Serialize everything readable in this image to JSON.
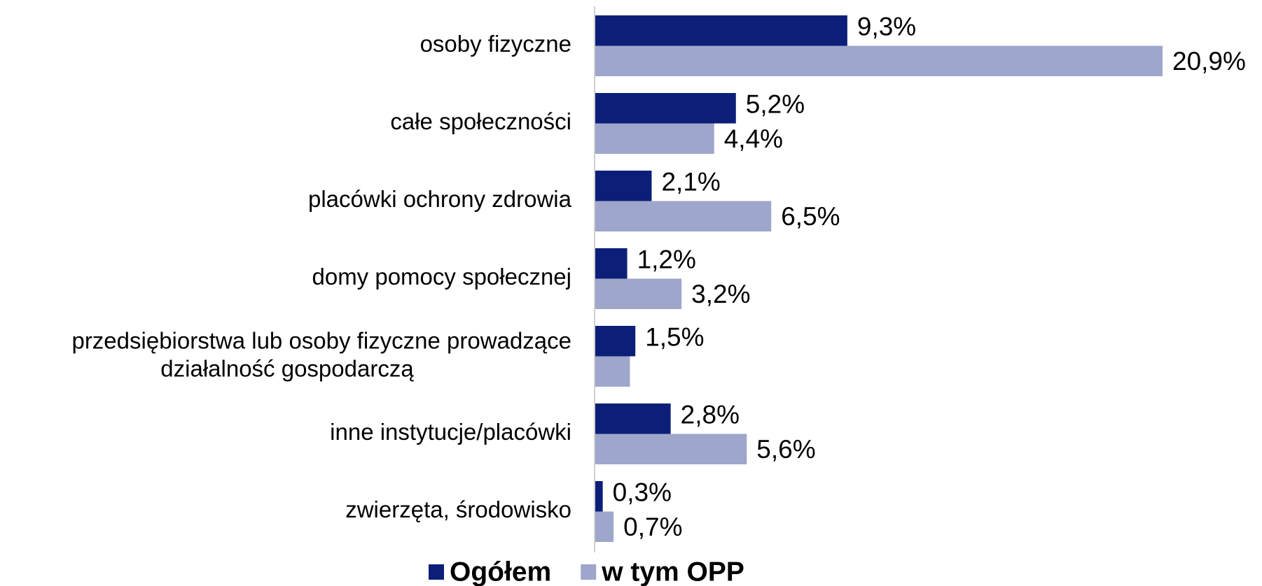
{
  "chart_data": {
    "type": "bar",
    "orientation": "horizontal",
    "categories": [
      "osoby fizyczne",
      "całe społeczności",
      "placówki ochrony zdrowia",
      "domy pomocy społecznej",
      "przedsiębiorstwa lub osoby fizyczne prowadzące\ndziałalność gospodarczą",
      "inne instytucje/placówki",
      "zwierzęta, środowisko"
    ],
    "series": [
      {
        "name": "Ogółem",
        "color": "#0c1f78",
        "values": [
          9.3,
          5.2,
          2.1,
          1.2,
          1.5,
          2.8,
          0.3
        ],
        "value_labels": [
          "9,3%",
          "5,2%",
          "2,1%",
          "1,2%",
          "1,5%",
          "2,8%",
          "0,3%"
        ]
      },
      {
        "name": "w tym OPP",
        "color": "#9ea6cb",
        "values": [
          20.9,
          4.4,
          6.5,
          3.2,
          1.3,
          5.6,
          0.7
        ],
        "value_labels": [
          "20,9%",
          "4,4%",
          "6,5%",
          "3,2%",
          null,
          "5,6%",
          "0,7%"
        ]
      }
    ],
    "legend": "bottom"
  }
}
